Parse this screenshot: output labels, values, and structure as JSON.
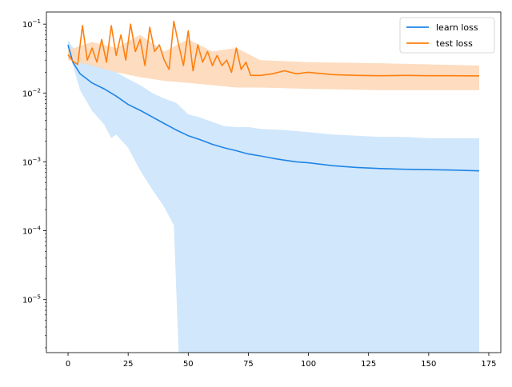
{
  "chart_data": {
    "type": "line",
    "title": "",
    "xlabel": "",
    "ylabel": "",
    "xlim": [
      -9,
      180
    ],
    "ylim": [
      1.7e-06,
      0.15
    ],
    "y_scale": "log",
    "grid": false,
    "legend_position": "top-right",
    "x_ticks": [
      0,
      25,
      50,
      75,
      100,
      125,
      150,
      175
    ],
    "y_ticks": [
      {
        "value": 1e-05,
        "base": "10",
        "exp": "−5"
      },
      {
        "value": 0.0001,
        "base": "10",
        "exp": "−4"
      },
      {
        "value": 0.001,
        "base": "10",
        "exp": "−3"
      },
      {
        "value": 0.01,
        "base": "10",
        "exp": "−2"
      },
      {
        "value": 0.1,
        "base": "10",
        "exp": "−1"
      }
    ],
    "series": [
      {
        "name": "learn loss",
        "color": "#1f84e6",
        "band_color": "#cce4fb",
        "points": [
          [
            0,
            0.05
          ],
          [
            2,
            0.028
          ],
          [
            5,
            0.019
          ],
          [
            10,
            0.014
          ],
          [
            15,
            0.0115
          ],
          [
            20,
            0.009
          ],
          [
            25,
            0.0068
          ],
          [
            30,
            0.0056
          ],
          [
            35,
            0.0045
          ],
          [
            40,
            0.0036
          ],
          [
            45,
            0.0029
          ],
          [
            50,
            0.0024
          ],
          [
            55,
            0.0021
          ],
          [
            60,
            0.0018
          ],
          [
            65,
            0.0016
          ],
          [
            70,
            0.00145
          ],
          [
            75,
            0.0013
          ],
          [
            80,
            0.00122
          ],
          [
            85,
            0.00113
          ],
          [
            90,
            0.00106
          ],
          [
            95,
            0.001
          ],
          [
            100,
            0.00097
          ],
          [
            110,
            0.00088
          ],
          [
            120,
            0.00083
          ],
          [
            130,
            0.0008
          ],
          [
            140,
            0.00078
          ],
          [
            150,
            0.00077
          ],
          [
            160,
            0.00076
          ],
          [
            171,
            0.00074
          ]
        ],
        "band_upper": [
          [
            0,
            0.058
          ],
          [
            5,
            0.033
          ],
          [
            10,
            0.027
          ],
          [
            20,
            0.02
          ],
          [
            25,
            0.016
          ],
          [
            30,
            0.013
          ],
          [
            35,
            0.01
          ],
          [
            40,
            0.0083
          ],
          [
            45,
            0.0072
          ],
          [
            50,
            0.0049
          ],
          [
            55,
            0.0044
          ],
          [
            60,
            0.0038
          ],
          [
            65,
            0.0033
          ],
          [
            70,
            0.0032
          ],
          [
            75,
            0.0032
          ],
          [
            80,
            0.003
          ],
          [
            90,
            0.0029
          ],
          [
            100,
            0.0027
          ],
          [
            110,
            0.0025
          ],
          [
            120,
            0.0024
          ],
          [
            130,
            0.0023
          ],
          [
            140,
            0.0023
          ],
          [
            150,
            0.0022
          ],
          [
            160,
            0.0022
          ],
          [
            171,
            0.0022
          ]
        ],
        "band_lower": [
          [
            0,
            0.044
          ],
          [
            5,
            0.011
          ],
          [
            10,
            0.0055
          ],
          [
            15,
            0.0035
          ],
          [
            18,
            0.0022
          ],
          [
            20,
            0.0025
          ],
          [
            25,
            0.0016
          ],
          [
            30,
            0.00075
          ],
          [
            35,
            0.0004
          ],
          [
            40,
            0.00022
          ],
          [
            44,
            0.00012
          ],
          [
            46,
            1.7e-06
          ],
          [
            171,
            1.7e-06
          ]
        ]
      },
      {
        "name": "test loss",
        "color": "#ff7f0e",
        "band_color": "#fdd8b8",
        "points": [
          [
            0,
            0.036
          ],
          [
            2,
            0.029
          ],
          [
            4,
            0.026
          ],
          [
            6,
            0.095
          ],
          [
            8,
            0.03
          ],
          [
            10,
            0.045
          ],
          [
            12,
            0.028
          ],
          [
            14,
            0.06
          ],
          [
            16,
            0.028
          ],
          [
            18,
            0.095
          ],
          [
            20,
            0.035
          ],
          [
            22,
            0.07
          ],
          [
            24,
            0.03
          ],
          [
            26,
            0.1
          ],
          [
            28,
            0.04
          ],
          [
            30,
            0.06
          ],
          [
            32,
            0.025
          ],
          [
            34,
            0.09
          ],
          [
            36,
            0.04
          ],
          [
            38,
            0.05
          ],
          [
            40,
            0.03
          ],
          [
            42,
            0.022
          ],
          [
            44,
            0.11
          ],
          [
            46,
            0.05
          ],
          [
            48,
            0.025
          ],
          [
            50,
            0.08
          ],
          [
            52,
            0.021
          ],
          [
            54,
            0.05
          ],
          [
            56,
            0.028
          ],
          [
            58,
            0.04
          ],
          [
            60,
            0.025
          ],
          [
            62,
            0.035
          ],
          [
            64,
            0.025
          ],
          [
            66,
            0.03
          ],
          [
            68,
            0.02
          ],
          [
            70,
            0.045
          ],
          [
            72,
            0.022
          ],
          [
            74,
            0.028
          ],
          [
            76,
            0.018
          ],
          [
            80,
            0.018
          ],
          [
            85,
            0.019
          ],
          [
            90,
            0.021
          ],
          [
            95,
            0.019
          ],
          [
            100,
            0.02
          ],
          [
            110,
            0.0185
          ],
          [
            120,
            0.018
          ],
          [
            130,
            0.0178
          ],
          [
            140,
            0.018
          ],
          [
            150,
            0.0178
          ],
          [
            160,
            0.0178
          ],
          [
            171,
            0.0177
          ]
        ],
        "band_upper": [
          [
            0,
            0.042
          ],
          [
            10,
            0.055
          ],
          [
            20,
            0.045
          ],
          [
            30,
            0.07
          ],
          [
            40,
            0.04
          ],
          [
            50,
            0.06
          ],
          [
            60,
            0.04
          ],
          [
            70,
            0.045
          ],
          [
            80,
            0.03
          ],
          [
            100,
            0.028
          ],
          [
            130,
            0.027
          ],
          [
            171,
            0.025
          ]
        ],
        "band_lower": [
          [
            0,
            0.03
          ],
          [
            10,
            0.025
          ],
          [
            20,
            0.02
          ],
          [
            30,
            0.017
          ],
          [
            40,
            0.015
          ],
          [
            50,
            0.014
          ],
          [
            60,
            0.013
          ],
          [
            70,
            0.012
          ],
          [
            80,
            0.012
          ],
          [
            100,
            0.0115
          ],
          [
            130,
            0.011
          ],
          [
            171,
            0.011
          ]
        ]
      }
    ]
  }
}
